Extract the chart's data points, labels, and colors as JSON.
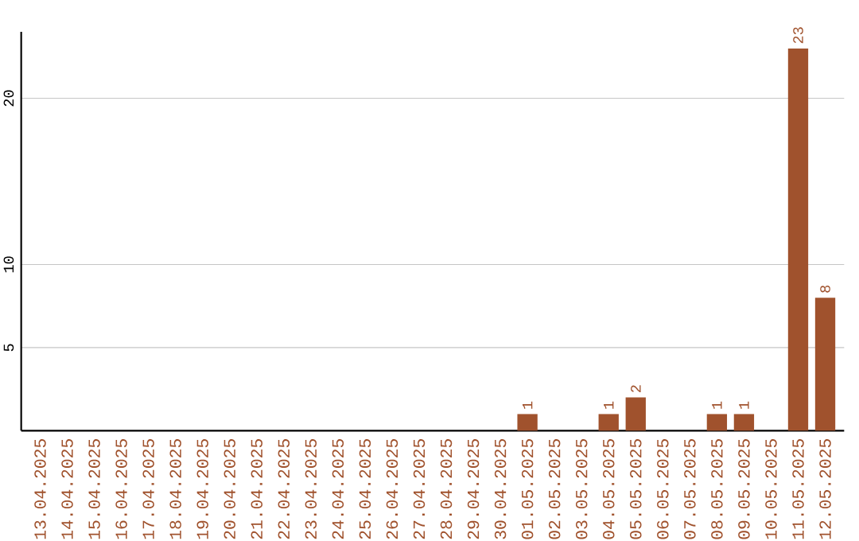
{
  "chart_data": {
    "type": "bar",
    "categories": [
      "13.04.2025",
      "14.04.2025",
      "15.04.2025",
      "16.04.2025",
      "17.04.2025",
      "18.04.2025",
      "19.04.2025",
      "20.04.2025",
      "21.04.2025",
      "22.04.2025",
      "23.04.2025",
      "24.04.2025",
      "25.04.2025",
      "26.04.2025",
      "27.04.2025",
      "28.04.2025",
      "29.04.2025",
      "30.04.2025",
      "01.05.2025",
      "02.05.2025",
      "03.05.2025",
      "04.05.2025",
      "05.05.2025",
      "06.05.2025",
      "07.05.2025",
      "08.05.2025",
      "09.05.2025",
      "10.05.2025",
      "11.05.2025",
      "12.05.2025"
    ],
    "values": [
      0,
      0,
      0,
      0,
      0,
      0,
      0,
      0,
      0,
      0,
      0,
      0,
      0,
      0,
      0,
      0,
      0,
      0,
      1,
      0,
      0,
      1,
      2,
      0,
      0,
      1,
      1,
      0,
      23,
      8
    ],
    "value_labels": [
      null,
      null,
      null,
      null,
      null,
      null,
      null,
      null,
      null,
      null,
      null,
      null,
      null,
      null,
      null,
      null,
      null,
      null,
      "1",
      null,
      null,
      "1",
      "2",
      null,
      null,
      "1",
      "1",
      null,
      "23",
      "8"
    ],
    "color": "#a0522d",
    "ylim": [
      0,
      24
    ],
    "yticks": [
      5,
      10,
      20
    ],
    "grid": "y"
  }
}
